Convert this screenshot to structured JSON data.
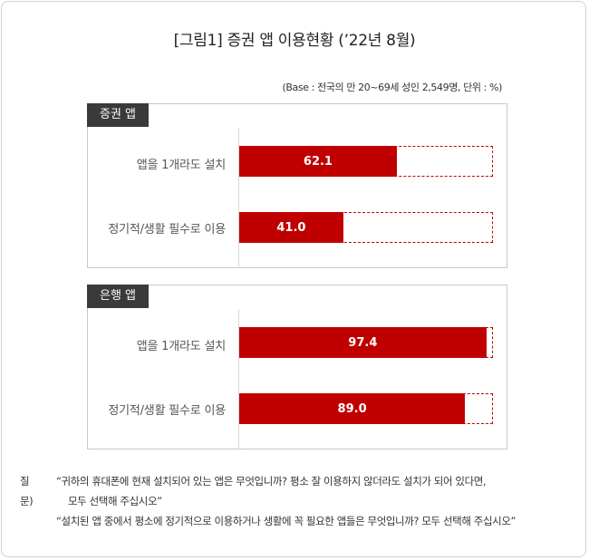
{
  "title": "[그림1] 증권 앱 이용현황 (’22년 8월)",
  "base_note": "(Base : 전국의 만 20~69세 성인 2,549명, 단위 : %)",
  "chart_data": {
    "type": "bar",
    "orientation": "horizontal",
    "xlim": [
      0,
      100
    ],
    "unit": "%",
    "panels": [
      {
        "name": "증권 앱",
        "categories": [
          "앱을 1개라도 설치",
          "정기적/생활 필수로 이용"
        ],
        "values": [
          62.1,
          41.0
        ],
        "value_labels": [
          "62.1",
          "41.0"
        ]
      },
      {
        "name": "은행 앱",
        "categories": [
          "앱을 1개라도 설치",
          "정기적/생활 필수로 이용"
        ],
        "values": [
          97.4,
          89.0
        ],
        "value_labels": [
          "97.4",
          "89.0"
        ]
      }
    ],
    "colors": {
      "bar": "#c00000",
      "remainder_border": "#c00000"
    },
    "legend": "none",
    "grid": false
  },
  "notes": {
    "prefix": "질문)",
    "q1_line1": "“귀하의 휴대폰에 현재 설치되어 있는 앱은 무엇입니까? 평소 잘 이용하지 않더라도 설치가 되어 있다면,",
    "q1_line2": "모두 선택해 주십시오”",
    "q2": "“설치된 앱 중에서 평소에 정기적으로  이용하거나  생활에 꼭 필요한 앱들은  무엇입니까? 모두 선택해 주십시오”"
  }
}
